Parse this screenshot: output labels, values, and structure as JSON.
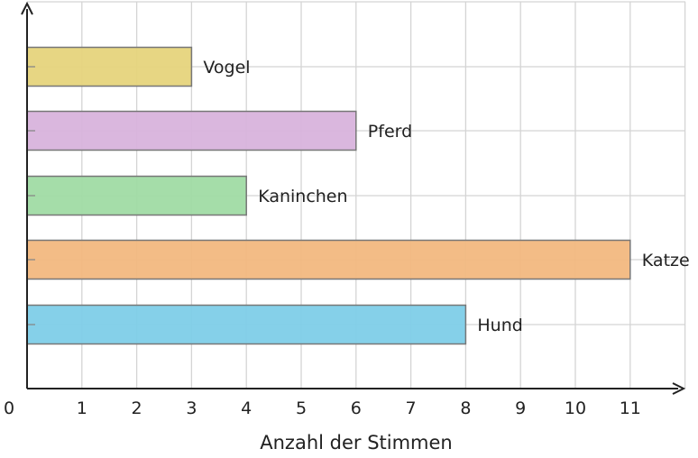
{
  "chart_data": {
    "type": "bar",
    "orientation": "horizontal",
    "categories": [
      "Hund",
      "Katze",
      "Kaninchen",
      "Pferd",
      "Vogel"
    ],
    "values": [
      8,
      11,
      4,
      6,
      3
    ],
    "colors": [
      "#7ecde8",
      "#f2b880",
      "#a0dba4",
      "#d8b3dc",
      "#e6d47c"
    ],
    "title": "",
    "xlabel": "Anzahl der Stimmen",
    "ylabel": "",
    "xlim": [
      0,
      12
    ],
    "xticks": [
      "0",
      "1",
      "2",
      "3",
      "4",
      "5",
      "6",
      "7",
      "8",
      "9",
      "10",
      "11"
    ],
    "grid": true,
    "value_labels": "category names at bar ends"
  }
}
